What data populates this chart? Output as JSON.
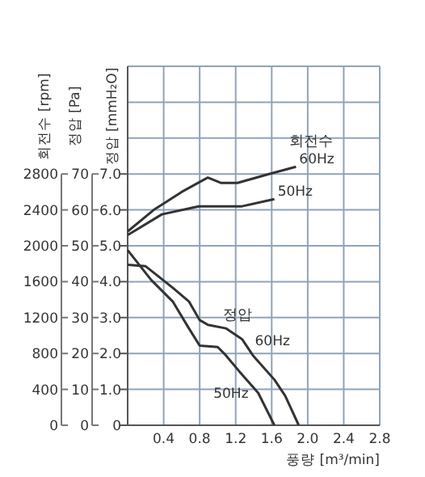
{
  "chart_data": {
    "type": "line",
    "xlabel": "풍량 [m³/min]",
    "ylabel": "정압 [mmH₂O]",
    "y2label": "정압 [Pa]",
    "y3label": "회전수 [rpm]",
    "xlim": [
      0,
      2.8
    ],
    "xticks": [
      {
        "value": 0,
        "label": null
      },
      {
        "value": 0.4,
        "label": "0.4"
      },
      {
        "value": 0.8,
        "label": "0.8"
      },
      {
        "value": 1.2,
        "label": "1.2"
      },
      {
        "value": 1.6,
        "label": "1.6"
      },
      {
        "value": 2.0,
        "label": "2.0"
      },
      {
        "value": 2.4,
        "label": "2.4"
      },
      {
        "value": 2.8,
        "label": "2.8"
      }
    ],
    "ylim": [
      0,
      10
    ],
    "yticks": [
      {
        "value": 0,
        "label": "0"
      },
      {
        "value": 1,
        "label": "1.0"
      },
      {
        "value": 2,
        "label": "2.0"
      },
      {
        "value": 3,
        "label": "3.0"
      },
      {
        "value": 4,
        "label": "4.0"
      },
      {
        "value": 5,
        "label": "5.0"
      },
      {
        "value": 6,
        "label": "6.0"
      },
      {
        "value": 7,
        "label": "7.0"
      },
      {
        "value": 8,
        "label": null
      },
      {
        "value": 9,
        "label": null
      },
      {
        "value": 10,
        "label": null
      }
    ],
    "y2lim": [
      0,
      100
    ],
    "y2ticks": [
      0,
      10,
      20,
      30,
      40,
      50,
      60,
      70
    ],
    "y3lim": [
      0,
      4000
    ],
    "y3ticks": [
      0,
      400,
      800,
      1200,
      1600,
      2000,
      2400,
      2800
    ],
    "grid": true,
    "line_style": "solid",
    "marker": "none",
    "series": [
      {
        "axis": "y3",
        "name": "60Hz",
        "color": "#333333",
        "x": [
          0,
          0.29,
          0.6,
          0.89,
          1.04,
          1.22,
          1.57,
          1.87
        ],
        "values": [
          2160,
          2400,
          2600,
          2760,
          2700,
          2700,
          2800,
          2880
        ]
      },
      {
        "axis": "y3",
        "name": "50Hz",
        "color": "#333333",
        "x": [
          0,
          0.38,
          0.79,
          1.27,
          1.63
        ],
        "values": [
          2120,
          2350,
          2440,
          2440,
          2520
        ]
      },
      {
        "name": "60Hz",
        "color": "#333333",
        "x": [
          0,
          0.2,
          0.5,
          0.68,
          0.8,
          0.89,
          1.09,
          1.27,
          1.39,
          1.63,
          1.75,
          1.9
        ],
        "values": [
          4.47,
          4.43,
          3.83,
          3.45,
          2.93,
          2.8,
          2.7,
          2.4,
          1.95,
          1.27,
          0.82,
          0
        ]
      },
      {
        "name": "50Hz",
        "color": "#333333",
        "x": [
          0,
          0.26,
          0.5,
          0.68,
          0.8,
          1.0,
          1.09,
          1.24,
          1.45,
          1.63
        ],
        "values": [
          4.88,
          4.05,
          3.45,
          2.7,
          2.22,
          2.18,
          1.95,
          1.5,
          0.9,
          0
        ]
      }
    ],
    "annotations": [
      "회전수",
      "정압"
    ]
  }
}
